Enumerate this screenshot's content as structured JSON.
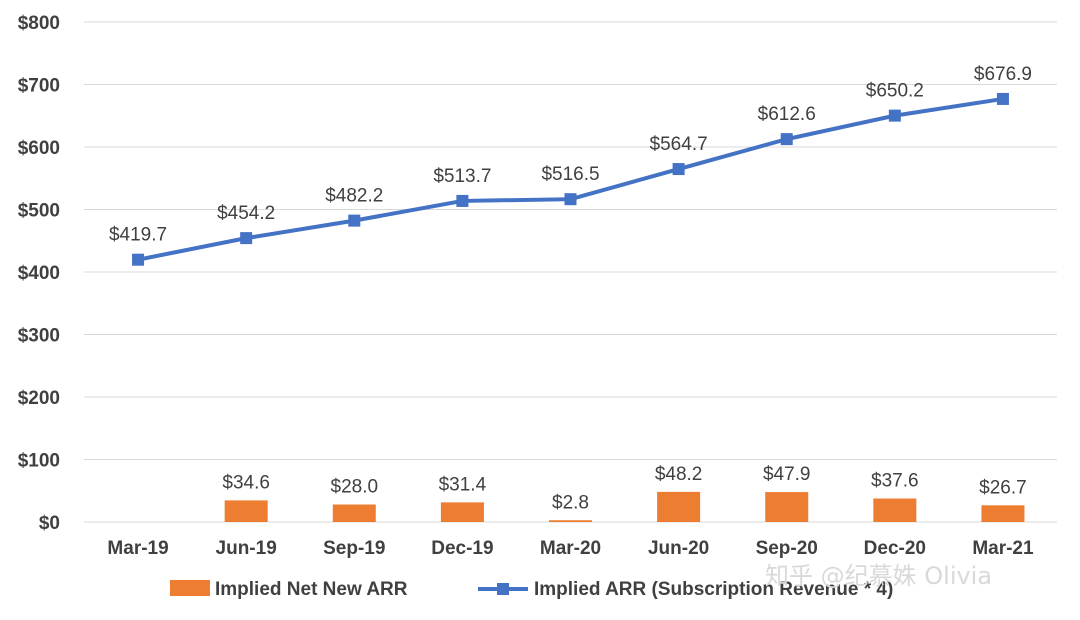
{
  "chart_data": {
    "type": "bar+line",
    "categories": [
      "Mar-19",
      "Jun-19",
      "Sep-19",
      "Dec-19",
      "Mar-20",
      "Jun-20",
      "Sep-20",
      "Dec-20",
      "Mar-21"
    ],
    "series": [
      {
        "name": "Implied Net New ARR",
        "type": "bar",
        "color": "#ED7D31",
        "values": [
          null,
          34.6,
          28.0,
          31.4,
          2.8,
          48.2,
          47.9,
          37.6,
          26.7
        ],
        "labels": [
          "",
          "$34.6",
          "$28.0",
          "$31.4",
          "$2.8",
          "$48.2",
          "$47.9",
          "$37.6",
          "$26.7"
        ]
      },
      {
        "name": "Implied ARR (Subscription Revenue * 4)",
        "type": "line",
        "color": "#4472C4",
        "values": [
          419.7,
          454.2,
          482.2,
          513.7,
          516.5,
          564.7,
          612.6,
          650.2,
          676.9
        ],
        "labels": [
          "$419.7",
          "$454.2",
          "$482.2",
          "$513.7",
          "$516.5",
          "$564.7",
          "$612.6",
          "$650.2",
          "$676.9"
        ]
      }
    ],
    "yticks": [
      "$0",
      "$100",
      "$200",
      "$300",
      "$400",
      "$500",
      "$600",
      "$700",
      "$800"
    ],
    "ylim": [
      0,
      800
    ],
    "grid": true,
    "legend_position": "bottom"
  },
  "watermark": "知乎 @纪慕姝 Olivia"
}
